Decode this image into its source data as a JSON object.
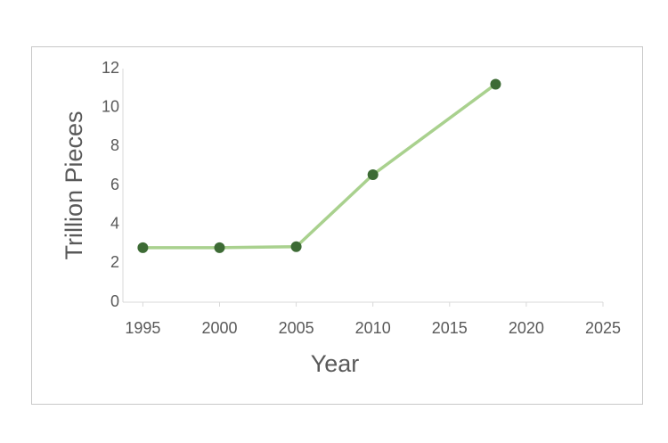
{
  "chart_data": {
    "type": "line",
    "x_label": "Year",
    "y_label": "Trillion Pieces",
    "x": [
      1995,
      2000,
      2005,
      2010,
      2018
    ],
    "series": [
      {
        "color": "#a9d18e",
        "marker_color": "#3d6b35",
        "values": [
          2.8,
          2.8,
          2.85,
          6.55,
          11.2
        ]
      }
    ],
    "xlim": [
      1993.7,
      2025
    ],
    "xticks": [
      1995,
      2000,
      2005,
      2010,
      2015,
      2020,
      2025
    ],
    "ylim": [
      0,
      12
    ],
    "yticks": [
      0,
      2,
      4,
      6,
      8,
      10,
      12
    ],
    "grid": false
  }
}
